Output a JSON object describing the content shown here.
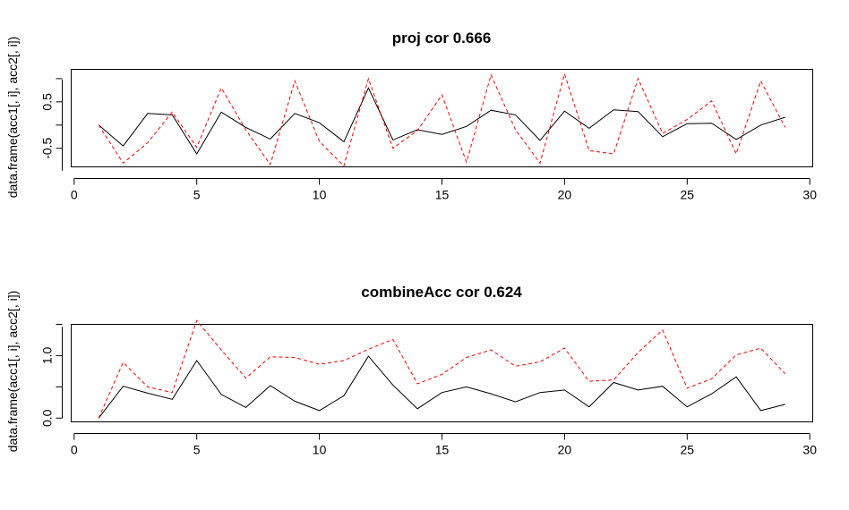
{
  "chart_data": [
    {
      "type": "line",
      "title": "proj cor 0.666",
      "xlabel": "",
      "ylabel": "data.frame(acc1[, i], acc2[, i])",
      "xlim": [
        0,
        30
      ],
      "ylim": [
        -0.9,
        1.2
      ],
      "xticks": [
        0,
        5,
        10,
        15,
        20,
        25,
        30
      ],
      "yticks": [
        -0.5,
        0.5
      ],
      "x": [
        1,
        2,
        3,
        4,
        5,
        6,
        7,
        8,
        9,
        10,
        11,
        12,
        13,
        14,
        15,
        16,
        17,
        18,
        19,
        20,
        21,
        22,
        23,
        24,
        25,
        26,
        27,
        28,
        29
      ],
      "series": [
        {
          "color": "#000000",
          "dash": "solid",
          "values": [
            0.0,
            -0.45,
            0.25,
            0.22,
            -0.62,
            0.28,
            -0.05,
            -0.3,
            0.25,
            0.05,
            -0.36,
            0.8,
            -0.32,
            -0.1,
            -0.2,
            -0.03,
            0.32,
            0.22,
            -0.33,
            0.3,
            -0.07,
            0.33,
            0.29,
            -0.25,
            0.03,
            0.04,
            -0.31,
            0.0,
            0.17
          ]
        },
        {
          "color": "#ff0000",
          "dash": "dashed",
          "values": [
            0.0,
            -0.82,
            -0.38,
            0.28,
            -0.48,
            0.8,
            -0.1,
            -0.85,
            0.95,
            -0.35,
            -0.88,
            1.0,
            -0.5,
            -0.12,
            0.65,
            -0.8,
            1.08,
            -0.1,
            -0.82,
            1.1,
            -0.55,
            -0.62,
            1.0,
            -0.18,
            0.12,
            0.52,
            -0.62,
            0.95,
            -0.05
          ]
        }
      ]
    },
    {
      "type": "line",
      "title": "combineAcc cor 0.624",
      "xlabel": "",
      "ylabel": "data.frame(acc1[, i], acc2[, i])",
      "xlim": [
        0,
        30
      ],
      "ylim": [
        -0.06,
        1.5
      ],
      "xticks": [
        0,
        5,
        10,
        15,
        20,
        25,
        30
      ],
      "yticks": [
        0.0,
        1.0
      ],
      "ytick_labels": [
        "0.0",
        "1.0"
      ],
      "x": [
        1,
        2,
        3,
        4,
        5,
        6,
        7,
        8,
        9,
        10,
        11,
        12,
        13,
        14,
        15,
        16,
        17,
        18,
        19,
        20,
        21,
        22,
        23,
        24,
        25,
        26,
        27,
        28,
        29
      ],
      "series": [
        {
          "color": "#000000",
          "dash": "solid",
          "values": [
            0.0,
            0.51,
            0.4,
            0.3,
            0.92,
            0.38,
            0.17,
            0.52,
            0.27,
            0.12,
            0.36,
            0.99,
            0.53,
            0.15,
            0.41,
            0.5,
            0.39,
            0.26,
            0.41,
            0.45,
            0.18,
            0.57,
            0.45,
            0.51,
            0.18,
            0.39,
            0.66,
            0.12,
            0.22
          ]
        },
        {
          "color": "#ff0000",
          "dash": "dashed",
          "values": [
            0.0,
            0.89,
            0.5,
            0.41,
            1.56,
            1.09,
            0.64,
            0.98,
            0.97,
            0.86,
            0.92,
            1.1,
            1.26,
            0.55,
            0.7,
            0.97,
            1.09,
            0.83,
            0.9,
            1.12,
            0.59,
            0.61,
            1.05,
            1.41,
            0.48,
            0.63,
            1.01,
            1.12,
            0.71
          ]
        }
      ]
    }
  ]
}
